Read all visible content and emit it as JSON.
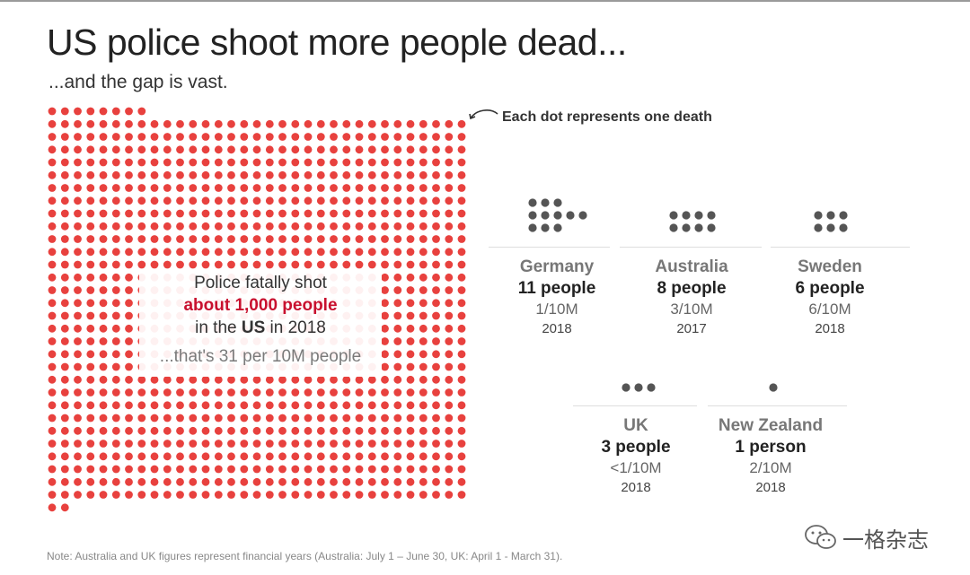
{
  "title": "US police shoot more people dead...",
  "subtitle": "...and the gap is vast.",
  "legend_text": "Each dot represents one death",
  "colors": {
    "us_dot": "#e8413e",
    "country_dot": "#555555",
    "highlight": "#c8102e"
  },
  "us_callout": {
    "line1": "Police fatally shot",
    "line2": "about 1,000 people",
    "line3_pre": "in the ",
    "line3_bold": "US",
    "line3_post": " in 2018",
    "line4": "...that's 31 per 10M people"
  },
  "countries": [
    {
      "name": "Germany",
      "count_label": "11 people",
      "rate": "1/10M",
      "year": "2018",
      "deaths": 11
    },
    {
      "name": "Australia",
      "count_label": "8 people",
      "rate": "3/10M",
      "year": "2017",
      "deaths": 8
    },
    {
      "name": "Sweden",
      "count_label": "6 people",
      "rate": "6/10M",
      "year": "2018",
      "deaths": 6
    },
    {
      "name": "UK",
      "count_label": "3 people",
      "rate": "<1/10M",
      "year": "2018",
      "deaths": 3
    },
    {
      "name": "New Zealand",
      "count_label": "1 person",
      "rate": "2/10M",
      "year": "2018",
      "deaths": 1
    }
  ],
  "note": "Note: Australia and UK figures represent financial years (Australia: July 1 – June 30, UK: April 1 - March 31).",
  "watermark": "一格杂志",
  "chart_data": {
    "type": "scatter",
    "title": "US police shoot more people dead...",
    "subtitle": "...and the gap is vast.",
    "unit": "Each dot represents one death",
    "categories": [
      "US",
      "Germany",
      "Australia",
      "Sweden",
      "UK",
      "New Zealand"
    ],
    "values": [
      1000,
      11,
      8,
      6,
      3,
      1
    ],
    "rates_per_10M": [
      "31",
      "1",
      "3",
      "6",
      "<1",
      "2"
    ],
    "years": [
      "2018",
      "2018",
      "2017",
      "2018",
      "2018",
      "2018"
    ]
  }
}
